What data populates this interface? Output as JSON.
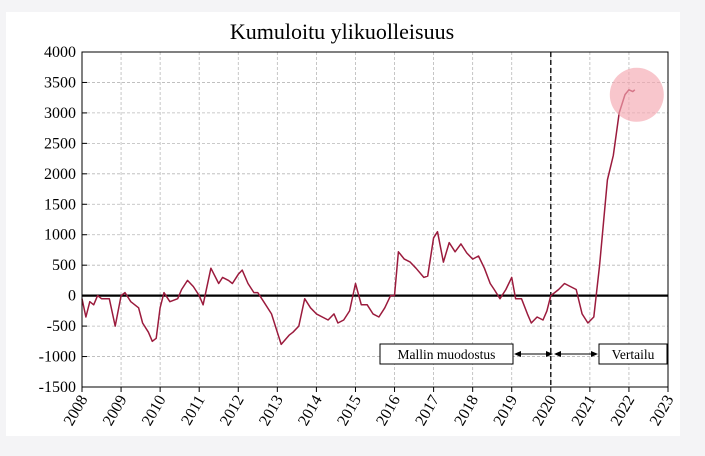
{
  "chart_data": {
    "type": "line",
    "title": "Kumuloitu ylikuolleisuus",
    "xlabel": "",
    "ylabel": "",
    "xlim": [
      2008,
      2023
    ],
    "ylim": [
      -1500,
      4000
    ],
    "x_ticks": [
      "2008",
      "2009",
      "2010",
      "2011",
      "2012",
      "2013",
      "2014",
      "2015",
      "2016",
      "2017",
      "2018",
      "2019",
      "2020",
      "2021",
      "2022",
      "2023"
    ],
    "y_ticks": [
      4000,
      3500,
      3000,
      2500,
      2000,
      1500,
      1000,
      500,
      0,
      -500,
      -1000,
      -1500
    ],
    "grid": true,
    "series": [
      {
        "color": "#9b1b3d",
        "x": [
          2008.0,
          2008.1,
          2008.2,
          2008.3,
          2008.4,
          2008.5,
          2008.7,
          2008.85,
          2009.0,
          2009.1,
          2009.25,
          2009.45,
          2009.55,
          2009.7,
          2009.8,
          2009.9,
          2010.0,
          2010.1,
          2010.25,
          2010.45,
          2010.55,
          2010.7,
          2010.85,
          2011.0,
          2011.1,
          2011.3,
          2011.5,
          2011.6,
          2011.75,
          2011.85,
          2012.0,
          2012.1,
          2012.25,
          2012.4,
          2012.5,
          2012.65,
          2012.85,
          2013.0,
          2013.1,
          2013.3,
          2013.4,
          2013.55,
          2013.7,
          2013.85,
          2014.0,
          2014.15,
          2014.3,
          2014.45,
          2014.55,
          2014.7,
          2014.85,
          2015.0,
          2015.15,
          2015.3,
          2015.45,
          2015.6,
          2015.75,
          2015.9,
          2016.0,
          2016.1,
          2016.25,
          2016.4,
          2016.55,
          2016.75,
          2016.85,
          2017.0,
          2017.1,
          2017.25,
          2017.4,
          2017.55,
          2017.7,
          2017.85,
          2018.0,
          2018.15,
          2018.3,
          2018.45,
          2018.55,
          2018.7,
          2018.85,
          2019.0,
          2019.1,
          2019.25,
          2019.4,
          2019.5,
          2019.65,
          2019.8,
          2019.9,
          2020.0,
          2020.1,
          2020.2,
          2020.35,
          2020.5,
          2020.65,
          2020.8,
          2020.95,
          2021.1,
          2021.25,
          2021.35,
          2021.45,
          2021.6,
          2021.75,
          2021.9,
          2022.0,
          2022.1,
          2022.15
        ],
        "y": [
          -50,
          -350,
          -100,
          -150,
          0,
          -50,
          -50,
          -500,
          0,
          50,
          -100,
          -200,
          -450,
          -600,
          -750,
          -700,
          -200,
          50,
          -100,
          -50,
          100,
          250,
          150,
          0,
          -150,
          450,
          200,
          300,
          250,
          200,
          350,
          420,
          200,
          50,
          50,
          -100,
          -300,
          -600,
          -800,
          -650,
          -600,
          -500,
          -50,
          -200,
          -300,
          -350,
          -400,
          -300,
          -450,
          -400,
          -250,
          200,
          -150,
          -150,
          -300,
          -350,
          -200,
          0,
          0,
          720,
          600,
          550,
          450,
          300,
          320,
          950,
          1050,
          550,
          870,
          720,
          850,
          700,
          600,
          650,
          450,
          200,
          100,
          -50,
          100,
          300,
          -50,
          -50,
          -300,
          -450,
          -350,
          -400,
          -250,
          0,
          50,
          100,
          200,
          150,
          100,
          -300,
          -450,
          -350,
          500,
          1200,
          1900,
          2300,
          3000,
          3300,
          3380,
          3350,
          3380
        ]
      }
    ],
    "annotations": {
      "left_label": "Mallin muodostus",
      "right_label": "Vertailu",
      "split_year": 2020
    },
    "highlight_color": "#f4a7b0"
  }
}
